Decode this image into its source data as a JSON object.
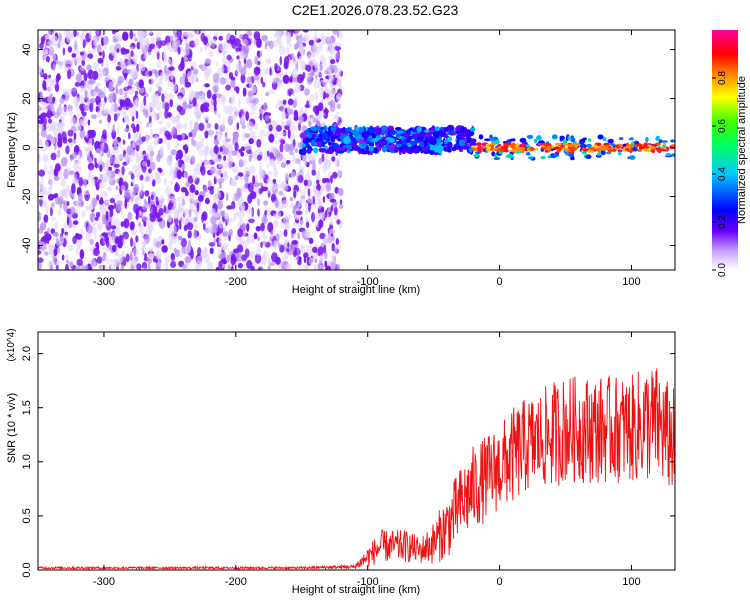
{
  "figure_title": "C2E1.2026.078.23.52.G23",
  "chart_data": [
    {
      "type": "heatmap",
      "title": "C2E1.2026.078.23.52.G23",
      "xlabel": "Height of straight line (km)",
      "ylabel": "Frequency (Hz)",
      "xlim": [
        -350,
        133
      ],
      "ylim": [
        -50,
        48
      ],
      "xticks": [
        -300,
        -200,
        -100,
        0,
        100
      ],
      "xtick_labels": [
        "-300",
        "-200",
        "-100",
        "0",
        "100"
      ],
      "yticks": [
        -40,
        -20,
        0,
        20,
        40
      ],
      "ytick_labels": [
        "-40",
        "-20",
        "0",
        "20",
        "40"
      ],
      "colorbar": {
        "label": "Normalized spectral amplitude",
        "range": [
          0,
          1
        ],
        "ticks": [
          0.0,
          0.2,
          0.4,
          0.6,
          0.8
        ],
        "tick_labels": [
          "0.0",
          "0.2",
          "0.4",
          "0.6",
          "0.8"
        ],
        "colormap": [
          "#ffffff",
          "#e8d6ff",
          "#6a00ff",
          "#0000ff",
          "#00c8ff",
          "#00ff00",
          "#ffff00",
          "#ff8000",
          "#ff0000",
          "#ff00ff"
        ]
      },
      "regions": [
        {
          "x": [
            -350,
            -120
          ],
          "freq_range": [
            -50,
            48
          ],
          "amplitude": [
            0.0,
            0.15
          ],
          "description": "broadband noise"
        },
        {
          "x": [
            -150,
            -20
          ],
          "center_freq": 3,
          "bandwidth": 10,
          "amplitude": [
            0.2,
            0.45
          ]
        },
        {
          "x": [
            -20,
            133
          ],
          "center_freq": 0,
          "bandwidth": 3,
          "amplitude": [
            0.7,
            0.95
          ]
        }
      ]
    },
    {
      "type": "line",
      "xlabel": "Height of straight line (km)",
      "ylabel": "SNR (10 * v/v)",
      "y_scale_label": "(x10^4)",
      "xlim": [
        -350,
        133
      ],
      "ylim": [
        0,
        2.2
      ],
      "xticks": [
        -300,
        -200,
        -100,
        0,
        100
      ],
      "xtick_labels": [
        "-300",
        "-200",
        "-100",
        "0",
        "100"
      ],
      "yticks": [
        0.0,
        0.5,
        1.0,
        1.5,
        2.0
      ],
      "ytick_labels": [
        "0.0",
        "0.5",
        "1.0",
        "1.5",
        "2.0"
      ],
      "series": [
        {
          "name": "SNR",
          "color": "#ee1111",
          "x": [
            -350,
            -300,
            -250,
            -200,
            -150,
            -110,
            -100,
            -90,
            -80,
            -70,
            -60,
            -50,
            -40,
            -30,
            -20,
            -10,
            0,
            10,
            20,
            30,
            40,
            50,
            60,
            70,
            80,
            90,
            100,
            110,
            120,
            130
          ],
          "y": [
            0.02,
            0.02,
            0.02,
            0.02,
            0.02,
            0.03,
            0.12,
            0.22,
            0.22,
            0.22,
            0.18,
            0.25,
            0.4,
            0.6,
            0.75,
            0.85,
            0.95,
            1.05,
            1.15,
            1.2,
            1.25,
            1.3,
            1.3,
            1.3,
            1.3,
            1.3,
            1.3,
            1.35,
            1.35,
            1.2
          ],
          "noise": [
            0.01,
            0.01,
            0.01,
            0.01,
            0.01,
            0.02,
            0.1,
            0.15,
            0.15,
            0.15,
            0.12,
            0.2,
            0.3,
            0.35,
            0.4,
            0.4,
            0.4,
            0.45,
            0.45,
            0.45,
            0.5,
            0.5,
            0.5,
            0.5,
            0.5,
            0.5,
            0.5,
            0.55,
            0.55,
            0.5
          ]
        }
      ]
    }
  ]
}
